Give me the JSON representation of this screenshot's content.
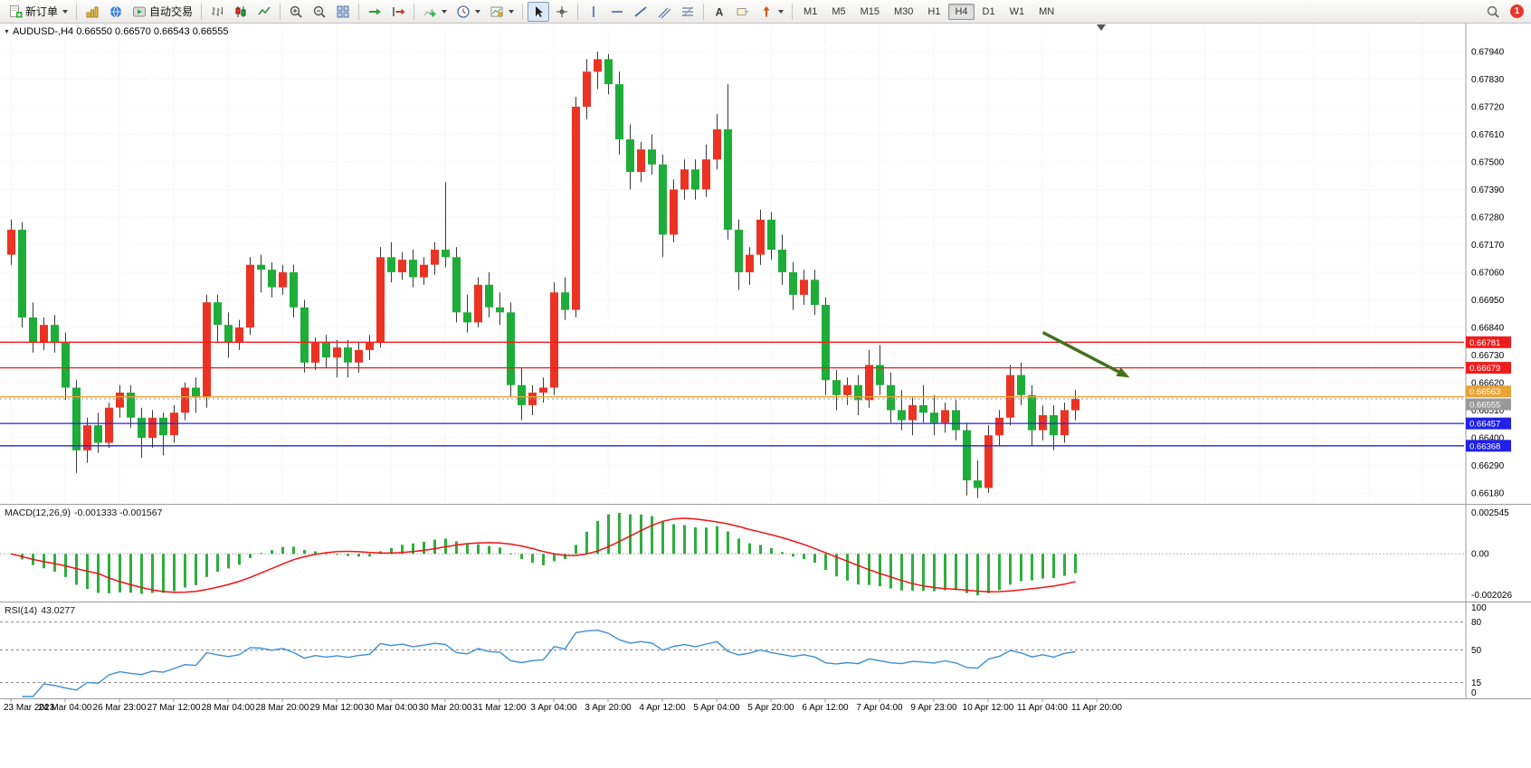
{
  "toolbar": {
    "groups": [
      {
        "name": "orders",
        "buttons": [
          {
            "name": "new-order-button",
            "icon": "new-order",
            "label": "新订单",
            "caret": true
          }
        ]
      },
      {
        "name": "windows",
        "buttons": [
          {
            "name": "market-watch-button",
            "icon": "market-watch"
          },
          {
            "name": "navigator-button",
            "icon": "navigator"
          },
          {
            "name": "autotrading-button",
            "icon": "autotrading",
            "label": "自动交易"
          }
        ]
      },
      {
        "name": "chart-types",
        "buttons": [
          {
            "name": "bar-chart-button",
            "icon": "bar-chart"
          },
          {
            "name": "candlestick-chart-button",
            "icon": "candlestick"
          },
          {
            "name": "line-chart-button",
            "icon": "line-chart"
          }
        ]
      },
      {
        "name": "zoom",
        "buttons": [
          {
            "name": "zoom-in-button",
            "icon": "zoom-in"
          },
          {
            "name": "zoom-out-button",
            "icon": "zoom-out"
          },
          {
            "name": "tile-windows-button",
            "icon": "tile-windows"
          }
        ]
      },
      {
        "name": "scroll",
        "buttons": [
          {
            "name": "auto-scroll-button",
            "icon": "auto-scroll"
          },
          {
            "name": "chart-shift-button",
            "icon": "chart-shift"
          }
        ]
      },
      {
        "name": "chart-tools",
        "buttons": [
          {
            "name": "indicators-button",
            "icon": "indicators",
            "caret": true
          },
          {
            "name": "periods-button",
            "icon": "periods",
            "caret": true
          },
          {
            "name": "templates-button",
            "icon": "templates",
            "caret": true
          }
        ]
      },
      {
        "name": "pointer",
        "buttons": [
          {
            "name": "cursor-button",
            "icon": "cursor",
            "active": true
          },
          {
            "name": "crosshair-button",
            "icon": "crosshair"
          }
        ]
      },
      {
        "name": "drawing",
        "buttons": [
          {
            "name": "vertical-line-button",
            "icon": "vertical-line"
          },
          {
            "name": "horizontal-line-button",
            "icon": "horizontal-line"
          },
          {
            "name": "trendline-button",
            "icon": "trendline"
          },
          {
            "name": "equidistant-channel-button",
            "icon": "channel"
          },
          {
            "name": "fibonacci-button",
            "icon": "fibonacci"
          }
        ]
      },
      {
        "name": "text-tools",
        "buttons": [
          {
            "name": "text-button",
            "icon": "text"
          },
          {
            "name": "text-label-button",
            "icon": "text-label"
          },
          {
            "name": "arrows-button",
            "icon": "arrows",
            "caret": true
          }
        ]
      }
    ],
    "timeframes": {
      "options": [
        "M1",
        "M5",
        "M15",
        "M30",
        "H1",
        "H4",
        "D1",
        "W1",
        "MN"
      ],
      "active": "H4"
    },
    "right": {
      "search_icon": "search",
      "notification_count": "1"
    }
  },
  "chart": {
    "title": {
      "symbol_period": "AUDUSD-,H4",
      "ohlc": "0.66550 0.66570 0.66543 0.66555"
    },
    "candle_colors": {
      "bull": "#ec3323",
      "bear": "#1dad38"
    },
    "price_axis": {
      "labels": [
        "0.67940",
        "0.67830",
        "0.67720",
        "0.67610",
        "0.67500",
        "0.67390",
        "0.67280",
        "0.67170",
        "0.67060",
        "0.66950",
        "0.66840",
        "0.66730",
        "0.66620",
        "0.66510",
        "0.66400",
        "0.66290",
        "0.66180"
      ]
    },
    "time_axis": {
      "labels": [
        "23 Mar 2023",
        "24 Mar 04:00",
        "26 Mar 23:00",
        "27 Mar 12:00",
        "28 Mar 04:00",
        "28 Mar 20:00",
        "29 Mar 12:00",
        "30 Mar 04:00",
        "30 Mar 20:00",
        "31 Mar 12:00",
        "3 Apr 04:00",
        "3 Apr 20:00",
        "4 Apr 12:00",
        "5 Apr 04:00",
        "5 Apr 20:00",
        "6 Apr 12:00",
        "7 Apr 04:00",
        "9 Apr 23:00",
        "10 Apr 12:00",
        "11 Apr 04:00",
        "11 Apr 20:00"
      ]
    },
    "levels": [
      {
        "price": 0.66781,
        "label": "0.66781",
        "color": "#ee1d1d"
      },
      {
        "price": 0.66679,
        "label": "0.66679",
        "color": "#ee1d1d"
      },
      {
        "price": 0.66563,
        "label": "0.66563",
        "color": "#eaa337"
      },
      {
        "price": 0.66457,
        "label": "0.66457",
        "color": "#2121e8"
      },
      {
        "price": 0.66368,
        "label": "0.66368",
        "color": "#2121e8"
      }
    ],
    "current_price": {
      "price": 0.66555,
      "label": "0.66555",
      "color": "#999999"
    },
    "arrow": {
      "from_index": 95,
      "from_price": 0.6682,
      "to_index": 103,
      "to_price": 0.6664,
      "color": "#44711c"
    }
  },
  "indicators": {
    "macd": {
      "label": "MACD(12,26,9)",
      "values_text": "-0.001333 -0.001567",
      "axis": [
        "0.002545",
        "0.00",
        "-0.002026"
      ],
      "histogram_color": "#2fae3e",
      "signal_color": "#f01414"
    },
    "rsi": {
      "label": "RSI(14)",
      "value_text": "43.0277",
      "axis": [
        "100",
        "80",
        "50",
        "15",
        "0"
      ],
      "levels": [
        80,
        50,
        15
      ],
      "line_color": "#3f8fd2"
    }
  },
  "chart_data": {
    "type": "candlestick",
    "symbol": "AUDUSD",
    "timeframe": "H4",
    "title": "AUDUSD-,H4",
    "ylim": [
      0.6614,
      0.68052
    ],
    "ohlc": [
      [
        0.6713,
        0.6727,
        0.6709,
        0.6723
      ],
      [
        0.6723,
        0.6726,
        0.6684,
        0.6688
      ],
      [
        0.6688,
        0.6694,
        0.6674,
        0.6678
      ],
      [
        0.6678,
        0.6688,
        0.6675,
        0.6685
      ],
      [
        0.6685,
        0.6689,
        0.6674,
        0.6678
      ],
      [
        0.6678,
        0.6682,
        0.6655,
        0.666
      ],
      [
        0.666,
        0.6663,
        0.6626,
        0.6635
      ],
      [
        0.6635,
        0.6648,
        0.663,
        0.6645
      ],
      [
        0.6645,
        0.665,
        0.6634,
        0.6638
      ],
      [
        0.6638,
        0.6654,
        0.6636,
        0.6652
      ],
      [
        0.6652,
        0.6661,
        0.6648,
        0.6658
      ],
      [
        0.6658,
        0.6661,
        0.6644,
        0.6648
      ],
      [
        0.6648,
        0.6652,
        0.6632,
        0.664
      ],
      [
        0.664,
        0.6651,
        0.6636,
        0.6648
      ],
      [
        0.6648,
        0.665,
        0.6633,
        0.6641
      ],
      [
        0.6641,
        0.6653,
        0.6638,
        0.665
      ],
      [
        0.665,
        0.6662,
        0.6647,
        0.666
      ],
      [
        0.666,
        0.6664,
        0.665,
        0.6656
      ],
      [
        0.6656,
        0.6697,
        0.6652,
        0.6694
      ],
      [
        0.6694,
        0.6697,
        0.6678,
        0.6685
      ],
      [
        0.6685,
        0.669,
        0.6672,
        0.6678
      ],
      [
        0.6678,
        0.6687,
        0.6675,
        0.6684
      ],
      [
        0.6684,
        0.6712,
        0.6681,
        0.6709
      ],
      [
        0.6709,
        0.6713,
        0.6698,
        0.6707
      ],
      [
        0.6707,
        0.671,
        0.6696,
        0.67
      ],
      [
        0.67,
        0.6709,
        0.6697,
        0.6706
      ],
      [
        0.6706,
        0.6709,
        0.6688,
        0.6692
      ],
      [
        0.6692,
        0.6695,
        0.6666,
        0.667
      ],
      [
        0.667,
        0.668,
        0.6667,
        0.6678
      ],
      [
        0.6678,
        0.6681,
        0.6668,
        0.6672
      ],
      [
        0.6672,
        0.6679,
        0.6664,
        0.6676
      ],
      [
        0.6676,
        0.6679,
        0.6664,
        0.667
      ],
      [
        0.667,
        0.6678,
        0.6666,
        0.6675
      ],
      [
        0.6675,
        0.6681,
        0.6671,
        0.6678
      ],
      [
        0.6678,
        0.6716,
        0.6676,
        0.6712
      ],
      [
        0.6712,
        0.6718,
        0.6702,
        0.6706
      ],
      [
        0.6706,
        0.6714,
        0.6703,
        0.6711
      ],
      [
        0.6711,
        0.6715,
        0.67,
        0.6704
      ],
      [
        0.6704,
        0.6712,
        0.6701,
        0.6709
      ],
      [
        0.6709,
        0.6718,
        0.6705,
        0.6715
      ],
      [
        0.6715,
        0.6742,
        0.6708,
        0.6712
      ],
      [
        0.6712,
        0.6716,
        0.6686,
        0.669
      ],
      [
        0.669,
        0.6697,
        0.6682,
        0.6686
      ],
      [
        0.6686,
        0.6704,
        0.6684,
        0.6701
      ],
      [
        0.6701,
        0.6706,
        0.6688,
        0.6692
      ],
      [
        0.6692,
        0.6698,
        0.6685,
        0.669
      ],
      [
        0.669,
        0.6694,
        0.6656,
        0.6661
      ],
      [
        0.6661,
        0.6668,
        0.6647,
        0.6653
      ],
      [
        0.6653,
        0.6661,
        0.6649,
        0.6658
      ],
      [
        0.6658,
        0.6664,
        0.6654,
        0.666
      ],
      [
        0.666,
        0.6702,
        0.6657,
        0.6698
      ],
      [
        0.6698,
        0.6704,
        0.6687,
        0.6691
      ],
      [
        0.6691,
        0.6776,
        0.6688,
        0.6772
      ],
      [
        0.6772,
        0.6791,
        0.6767,
        0.6786
      ],
      [
        0.6786,
        0.6794,
        0.6779,
        0.6791
      ],
      [
        0.6791,
        0.6793,
        0.6777,
        0.6781
      ],
      [
        0.6781,
        0.6786,
        0.6753,
        0.6759
      ],
      [
        0.6759,
        0.6765,
        0.6739,
        0.6746
      ],
      [
        0.6746,
        0.6758,
        0.6742,
        0.6755
      ],
      [
        0.6755,
        0.6761,
        0.6745,
        0.6749
      ],
      [
        0.6749,
        0.6753,
        0.6712,
        0.6721
      ],
      [
        0.6721,
        0.6743,
        0.6718,
        0.6739
      ],
      [
        0.6739,
        0.6751,
        0.6735,
        0.6747
      ],
      [
        0.6747,
        0.6751,
        0.6735,
        0.6739
      ],
      [
        0.6739,
        0.6757,
        0.6736,
        0.6751
      ],
      [
        0.6751,
        0.6769,
        0.6747,
        0.6763
      ],
      [
        0.6763,
        0.6781,
        0.6719,
        0.6723
      ],
      [
        0.6723,
        0.6727,
        0.6699,
        0.6706
      ],
      [
        0.6706,
        0.6716,
        0.6701,
        0.6713
      ],
      [
        0.6713,
        0.6731,
        0.6709,
        0.6727
      ],
      [
        0.6727,
        0.673,
        0.6711,
        0.6715
      ],
      [
        0.6715,
        0.6721,
        0.6701,
        0.6706
      ],
      [
        0.6706,
        0.671,
        0.6691,
        0.6697
      ],
      [
        0.6697,
        0.6707,
        0.6693,
        0.6703
      ],
      [
        0.6703,
        0.6707,
        0.6689,
        0.6693
      ],
      [
        0.6693,
        0.6696,
        0.6657,
        0.6663
      ],
      [
        0.6663,
        0.6667,
        0.6651,
        0.6657
      ],
      [
        0.6657,
        0.6664,
        0.6653,
        0.6661
      ],
      [
        0.6661,
        0.6665,
        0.6649,
        0.6655
      ],
      [
        0.6655,
        0.6675,
        0.6652,
        0.6669
      ],
      [
        0.6669,
        0.6677,
        0.6657,
        0.6661
      ],
      [
        0.6661,
        0.6666,
        0.6646,
        0.6651
      ],
      [
        0.6651,
        0.6659,
        0.6643,
        0.6647
      ],
      [
        0.6647,
        0.6656,
        0.6641,
        0.6653
      ],
      [
        0.6653,
        0.6661,
        0.6646,
        0.665
      ],
      [
        0.665,
        0.6657,
        0.6641,
        0.6646
      ],
      [
        0.6646,
        0.6654,
        0.6642,
        0.6651
      ],
      [
        0.6651,
        0.6655,
        0.6639,
        0.6643
      ],
      [
        0.6643,
        0.6646,
        0.6617,
        0.6623
      ],
      [
        0.6623,
        0.6631,
        0.6616,
        0.662
      ],
      [
        0.662,
        0.6645,
        0.6618,
        0.6641
      ],
      [
        0.6641,
        0.6651,
        0.6637,
        0.6648
      ],
      [
        0.6648,
        0.6669,
        0.6645,
        0.6665
      ],
      [
        0.6665,
        0.667,
        0.6653,
        0.6657
      ],
      [
        0.6657,
        0.6661,
        0.6637,
        0.6643
      ],
      [
        0.6643,
        0.6653,
        0.6639,
        0.6649
      ],
      [
        0.6649,
        0.6653,
        0.6635,
        0.6641
      ],
      [
        0.6641,
        0.6654,
        0.6638,
        0.6651
      ],
      [
        0.6651,
        0.6659,
        0.6647,
        0.66555
      ]
    ]
  }
}
